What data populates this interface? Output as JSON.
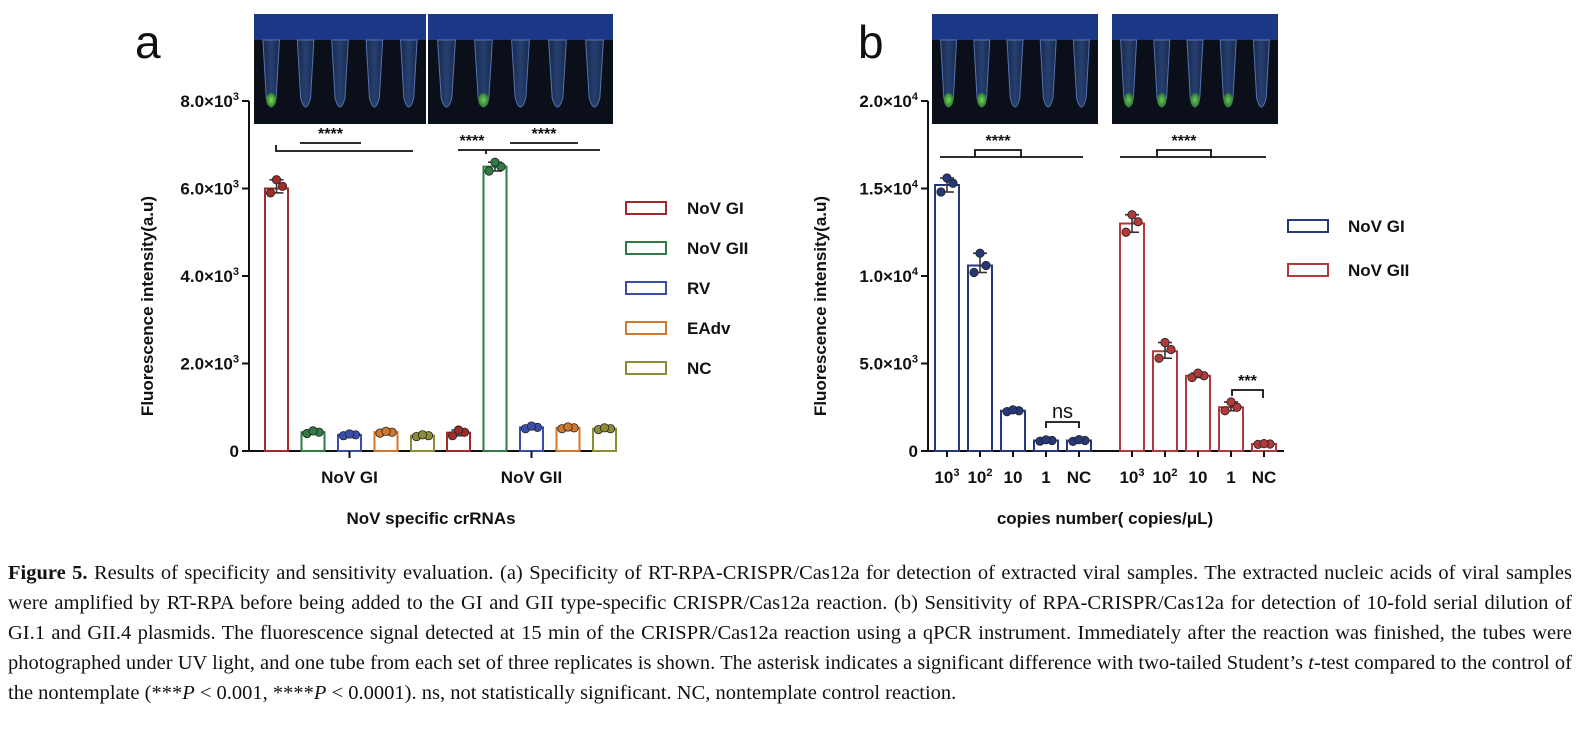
{
  "figure": {
    "caption_label": "Figure 5.",
    "caption_parts": {
      "p1": " Results of specificity and sensitivity evaluation. (a) Specificity of RT-RPA-CRISPR/Cas12a for detection of extracted viral samples. The extracted nucleic acids of viral samples were amplified by RT-RPA before being added to the GI and GII type-specific CRISPR/Cas12a reaction. (b) Sensitivity of RPA-CRISPR/Cas12a for detection of 10-fold serial dilution of GI.1 and GII.4 plasmids. The fluorescence signal detected at 15 min of the CRISPR/Cas12a reaction using a qPCR instrument. Immediately after the reaction was finished, the tubes were photographed under UV light, and one tube from each set of three replicates is shown. The asterisk indicates a significant difference with two-tailed Student’s ",
      "t": "t",
      "p2": "-test compared to the control of the nontemplate (***",
      "P1": "P",
      "p3": " < 0.001, ****",
      "P2": "P",
      "p4": " < 0.0001). ns, not statistically significant. NC, nontemplate control reaction."
    }
  },
  "chart_data": [
    {
      "panel": "a",
      "type": "bar",
      "ylabel": "Fluorescence intensity(a.u)",
      "xlabel": "NoV specific crRNAs",
      "ylim": [
        0,
        8000
      ],
      "yticks": [
        {
          "value": 0,
          "mant": "0",
          "exp": ""
        },
        {
          "value": 2000,
          "mant": "2.0×10",
          "exp": "3"
        },
        {
          "value": 4000,
          "mant": "4.0×10",
          "exp": "3"
        },
        {
          "value": 6000,
          "mant": "6.0×10",
          "exp": "3"
        },
        {
          "value": 8000,
          "mant": "8.0×10",
          "exp": "3"
        }
      ],
      "groups": [
        "NoV GI",
        "NoV GII"
      ],
      "legend": [
        {
          "name": "NoV GI",
          "color": "#a32a2a"
        },
        {
          "name": "NoV GII",
          "color": "#2f7a45"
        },
        {
          "name": "RV",
          "color": "#3a4ea8"
        },
        {
          "name": "EAdv",
          "color": "#d2772e"
        },
        {
          "name": "NC",
          "color": "#8c8c33"
        }
      ],
      "series": [
        {
          "name": "NoV GI",
          "values": [
            6000,
            420
          ],
          "points": [
            [
              5900,
              6050,
              6200
            ],
            [
              350,
              430,
              480
            ]
          ]
        },
        {
          "name": "NoV GII",
          "values": [
            430,
            6500
          ],
          "points": [
            [
              400,
              430,
              460
            ],
            [
              6400,
              6500,
              6600
            ]
          ]
        },
        {
          "name": "RV",
          "values": [
            370,
            540
          ],
          "points": [
            [
              350,
              370,
              390
            ],
            [
              510,
              540,
              570
            ]
          ]
        },
        {
          "name": "EAdv",
          "values": [
            430,
            530
          ],
          "points": [
            [
              410,
              430,
              450
            ],
            [
              510,
              530,
              550
            ]
          ]
        },
        {
          "name": "NC",
          "values": [
            350,
            510
          ],
          "points": [
            [
              330,
              350,
              370
            ],
            [
              490,
              510,
              530
            ]
          ]
        }
      ],
      "significance": [
        "****",
        "****",
        "****"
      ]
    },
    {
      "panel": "b",
      "type": "bar",
      "ylabel": "Fluorescence intensity(a.u)",
      "xlabel": "copies number( copies/μL)",
      "ylim": [
        0,
        20000
      ],
      "yticks": [
        {
          "value": 0,
          "mant": "0",
          "exp": ""
        },
        {
          "value": 5000,
          "mant": "5.0×10",
          "exp": "3"
        },
        {
          "value": 10000,
          "mant": "1.0×10",
          "exp": "4"
        },
        {
          "value": 15000,
          "mant": "1.5×10",
          "exp": "4"
        },
        {
          "value": 20000,
          "mant": "2.0×10",
          "exp": "4"
        }
      ],
      "categories": [
        {
          "mant": "10",
          "exp": "3"
        },
        {
          "mant": "10",
          "exp": "2"
        },
        {
          "mant": "10",
          "exp": ""
        },
        {
          "mant": "1",
          "exp": ""
        },
        {
          "mant": "NC",
          "exp": ""
        }
      ],
      "legend": [
        {
          "name": "NoV GI",
          "color": "#27387a"
        },
        {
          "name": "NoV GII",
          "color": "#b03a3a"
        }
      ],
      "series": [
        {
          "name": "NoV GI",
          "values": [
            15200,
            10600,
            2300,
            600,
            600
          ],
          "points": [
            [
              14800,
              15300,
              15600
            ],
            [
              10200,
              10600,
              11300
            ],
            [
              2250,
              2300,
              2350
            ],
            [
              560,
              600,
              640
            ],
            [
              550,
              600,
              650
            ]
          ]
        },
        {
          "name": "NoV GII",
          "values": [
            13000,
            5700,
            4300,
            2500,
            400
          ],
          "points": [
            [
              12500,
              13100,
              13500
            ],
            [
              5300,
              5800,
              6200
            ],
            [
              4200,
              4300,
              4450
            ],
            [
              2300,
              2500,
              2800
            ],
            [
              380,
              400,
              420
            ]
          ]
        }
      ],
      "significance": [
        "****",
        "****",
        "ns",
        "***"
      ]
    }
  ]
}
